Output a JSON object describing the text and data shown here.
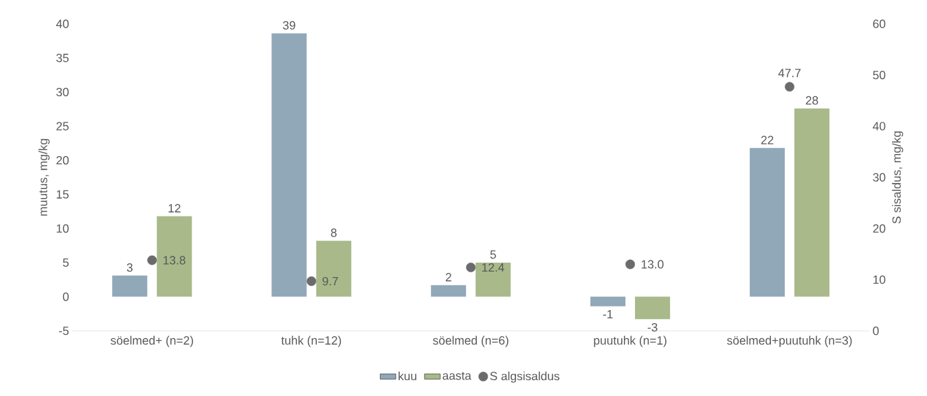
{
  "chart_data": {
    "type": "bar",
    "ylabel": "muutus, mg/kg",
    "y2label": "S sisaldus, mg/kg",
    "categories": [
      "söelmed+ (n=2)",
      "tuhk (n=12)",
      "söelmed (n=6)",
      "puutuhk (n=1)",
      "söelmed+puutuhk (n=3)"
    ],
    "series": [
      {
        "name": "kuu",
        "color": "#91a8b8",
        "values": [
          3.1,
          38.6,
          1.7,
          -1.4,
          21.8
        ],
        "value_labels": [
          "3",
          "39",
          "2",
          "-1",
          "22"
        ]
      },
      {
        "name": "aasta",
        "color": "#a9b98a",
        "values": [
          11.8,
          8.2,
          5.0,
          -3.3,
          27.6
        ],
        "value_labels": [
          "12",
          "8",
          "5",
          "-3",
          "28"
        ]
      },
      {
        "name": "S algsisaldus",
        "type": "scatter",
        "axis": "y2",
        "color": "#6b6b6d",
        "values": [
          13.8,
          9.7,
          12.4,
          13.0,
          47.7
        ],
        "value_labels": [
          "13.8",
          "9.7",
          "12.4",
          "13.0",
          "47.7"
        ]
      }
    ],
    "ylim": [
      -5,
      40
    ],
    "yticks": [
      -5,
      0,
      5,
      10,
      15,
      20,
      25,
      30,
      35,
      40
    ],
    "y2lim": [
      0,
      60
    ],
    "y2ticks": [
      0,
      10,
      20,
      30,
      40,
      50,
      60
    ],
    "legend": "bottom",
    "grid": false
  }
}
